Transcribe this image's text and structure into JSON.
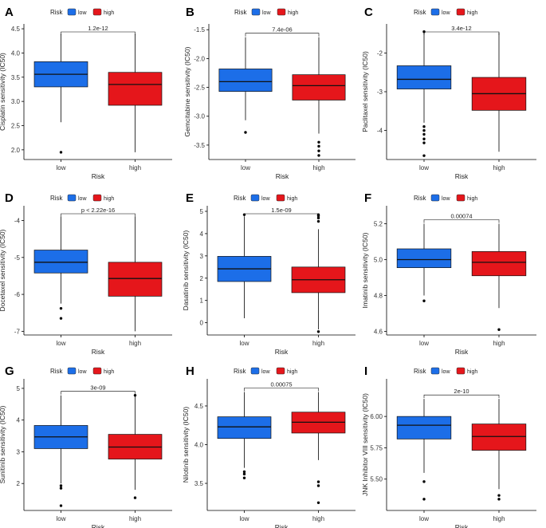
{
  "colors": {
    "low": "#1C6EE8",
    "high": "#E5161B"
  },
  "chart_data": [
    {
      "panel": "A",
      "type": "boxplot",
      "legend": {
        "title": "Risk",
        "items": [
          "low",
          "high"
        ]
      },
      "xlabel": "Risk",
      "ylabel": "Cisplatin sensitivity (IC50)",
      "categories": [
        "low",
        "high"
      ],
      "ylim": [
        1.8,
        4.6
      ],
      "yticks": [
        2.0,
        2.5,
        3.0,
        3.5,
        4.0,
        4.5
      ],
      "ytick_labels": [
        "2.0",
        "2.5",
        "3.0",
        "3.5",
        "4.0",
        "4.5"
      ],
      "boxes": [
        {
          "min": 2.57,
          "q1": 3.3,
          "median": 3.56,
          "q3": 3.82,
          "max": 4.39,
          "outliers": [
            1.95
          ]
        },
        {
          "min": 1.95,
          "q1": 2.92,
          "median": 3.35,
          "q3": 3.6,
          "max": 4.39,
          "outliers": []
        }
      ],
      "pvalue": "1.2e-12"
    },
    {
      "panel": "B",
      "type": "boxplot",
      "legend": {
        "title": "Risk",
        "items": [
          "low",
          "high"
        ]
      },
      "xlabel": "Risk",
      "ylabel": "Gemcitabine sensitivity (IC50)",
      "categories": [
        "low",
        "high"
      ],
      "ylim": [
        -3.75,
        -1.4
      ],
      "yticks": [
        -3.5,
        -3.0,
        -2.5,
        -2.0,
        -1.5
      ],
      "ytick_labels": [
        "-3.5",
        "-3.0",
        "-2.5",
        "-2.0",
        "-1.5"
      ],
      "boxes": [
        {
          "min": -3.07,
          "q1": -2.57,
          "median": -2.4,
          "q3": -2.18,
          "max": -1.63,
          "outliers": [
            -3.28
          ]
        },
        {
          "min": -3.3,
          "q1": -2.72,
          "median": -2.47,
          "q3": -2.28,
          "max": -1.63,
          "outliers": [
            -3.45,
            -3.52,
            -3.6,
            -3.68
          ]
        }
      ],
      "pvalue": "7.4e-06"
    },
    {
      "panel": "C",
      "type": "boxplot",
      "legend": {
        "title": "Risk",
        "items": [
          "low",
          "high"
        ]
      },
      "xlabel": "Risk",
      "ylabel": "Paclitaxel sensitivity (IC50)",
      "categories": [
        "low",
        "high"
      ],
      "ylim": [
        -4.75,
        -1.25
      ],
      "yticks": [
        -4,
        -3,
        -2
      ],
      "ytick_labels": [
        "-4",
        "-3",
        "-2"
      ],
      "boxes": [
        {
          "min": -3.8,
          "q1": -2.93,
          "median": -2.68,
          "q3": -2.33,
          "max": -1.48,
          "outliers": [
            -1.45,
            -3.9,
            -4.0,
            -4.1,
            -4.22,
            -4.32,
            -4.65
          ]
        },
        {
          "min": -4.55,
          "q1": -3.48,
          "median": -3.05,
          "q3": -2.63,
          "max": -1.48,
          "outliers": []
        }
      ],
      "pvalue": "3.4e-12"
    },
    {
      "panel": "D",
      "type": "boxplot",
      "legend": {
        "title": "Risk",
        "items": [
          "low",
          "high"
        ]
      },
      "xlabel": "Risk",
      "ylabel": "Docetaxel sensitivity (IC50)",
      "categories": [
        "low",
        "high"
      ],
      "ylim": [
        -7.1,
        -3.6
      ],
      "yticks": [
        -7,
        -6,
        -5,
        -4
      ],
      "ytick_labels": [
        "-7",
        "-6",
        "-5",
        "-4"
      ],
      "boxes": [
        {
          "min": -6.25,
          "q1": -5.42,
          "median": -5.13,
          "q3": -4.8,
          "max": -3.9,
          "outliers": [
            -6.38,
            -6.65
          ]
        },
        {
          "min": -7.0,
          "q1": -6.05,
          "median": -5.57,
          "q3": -5.13,
          "max": -3.9,
          "outliers": []
        }
      ],
      "pvalue": "p < 2.22e-16"
    },
    {
      "panel": "E",
      "type": "boxplot",
      "legend": {
        "title": "Risk",
        "items": [
          "low",
          "high"
        ]
      },
      "xlabel": "Risk",
      "ylabel": "Dasatinib sensitivity (IC50)",
      "categories": [
        "low",
        "high"
      ],
      "ylim": [
        -0.55,
        5.25
      ],
      "yticks": [
        0,
        1,
        2,
        3,
        4,
        5
      ],
      "ytick_labels": [
        "0",
        "1",
        "2",
        "3",
        "4",
        "5"
      ],
      "boxes": [
        {
          "min": 0.2,
          "q1": 1.85,
          "median": 2.42,
          "q3": 2.98,
          "max": 4.75,
          "outliers": [
            4.85
          ]
        },
        {
          "min": -0.3,
          "q1": 1.35,
          "median": 1.93,
          "q3": 2.5,
          "max": 4.2,
          "outliers": [
            4.55,
            4.7,
            4.8,
            4.85,
            -0.4
          ]
        }
      ],
      "pvalue": "1.5e-09"
    },
    {
      "panel": "F",
      "type": "boxplot",
      "legend": {
        "title": "Risk",
        "items": [
          "low",
          "high"
        ]
      },
      "xlabel": "Risk",
      "ylabel": "Imatinib sensitivity (IC50)",
      "categories": [
        "low",
        "high"
      ],
      "ylim": [
        4.58,
        5.3
      ],
      "yticks": [
        4.6,
        4.8,
        5.0,
        5.2
      ],
      "ytick_labels": [
        "4.6",
        "4.8",
        "5.0",
        "5.2"
      ],
      "boxes": [
        {
          "min": 4.8,
          "q1": 4.955,
          "median": 5.0,
          "q3": 5.06,
          "max": 5.2,
          "outliers": [
            4.77
          ]
        },
        {
          "min": 4.73,
          "q1": 4.91,
          "median": 4.985,
          "q3": 5.045,
          "max": 5.2,
          "outliers": [
            4.61
          ]
        }
      ],
      "pvalue": "0.00074"
    },
    {
      "panel": "G",
      "type": "boxplot",
      "legend": {
        "title": "Risk",
        "items": [
          "low",
          "high"
        ]
      },
      "xlabel": "Risk",
      "ylabel": "Sunitinib sensitivity (IC50)",
      "categories": [
        "low",
        "high"
      ],
      "ylim": [
        1.15,
        5.3
      ],
      "yticks": [
        2,
        3,
        4,
        5
      ],
      "ytick_labels": [
        "2",
        "3",
        "4",
        "5"
      ],
      "boxes": [
        {
          "min": 2.0,
          "q1": 3.1,
          "median": 3.47,
          "q3": 3.83,
          "max": 4.78,
          "outliers": [
            1.93,
            1.85,
            1.3
          ]
        },
        {
          "min": 1.8,
          "q1": 2.77,
          "median": 3.15,
          "q3": 3.55,
          "max": 4.78,
          "outliers": [
            4.78,
            1.55
          ]
        }
      ],
      "pvalue": "3e-09"
    },
    {
      "panel": "H",
      "type": "boxplot",
      "legend": {
        "title": "Risk",
        "items": [
          "low",
          "high"
        ]
      },
      "xlabel": "Risk",
      "ylabel": "Nilotinib sensitivity (IC50)",
      "categories": [
        "low",
        "high"
      ],
      "ylim": [
        3.15,
        4.85
      ],
      "yticks": [
        3.5,
        4.0,
        4.5
      ],
      "ytick_labels": [
        "3.5",
        "4.0",
        "4.5"
      ],
      "boxes": [
        {
          "min": 3.7,
          "q1": 4.08,
          "median": 4.23,
          "q3": 4.36,
          "max": 4.68,
          "outliers": [
            3.65,
            3.62,
            3.57
          ]
        },
        {
          "min": 3.8,
          "q1": 4.15,
          "median": 4.29,
          "q3": 4.42,
          "max": 4.68,
          "outliers": [
            3.52,
            3.47,
            3.25
          ]
        }
      ],
      "pvalue": "0.00075"
    },
    {
      "panel": "I",
      "type": "boxplot",
      "legend": {
        "title": "Risk",
        "items": [
          "low",
          "high"
        ]
      },
      "xlabel": "Risk",
      "ylabel": "JNK Inhibitor VIII sensitivity (IC50)",
      "categories": [
        "low",
        "high"
      ],
      "ylim": [
        5.25,
        6.3
      ],
      "yticks": [
        5.5,
        5.75,
        6.0
      ],
      "ytick_labels": [
        "5.50",
        "5.75",
        "6.00"
      ],
      "boxes": [
        {
          "min": 5.55,
          "q1": 5.82,
          "median": 5.93,
          "q3": 6.0,
          "max": 6.14,
          "outliers": [
            5.48,
            5.34
          ]
        },
        {
          "min": 5.42,
          "q1": 5.73,
          "median": 5.84,
          "q3": 5.94,
          "max": 6.14,
          "outliers": [
            5.37,
            5.34
          ]
        }
      ],
      "pvalue": "2e-10"
    }
  ]
}
